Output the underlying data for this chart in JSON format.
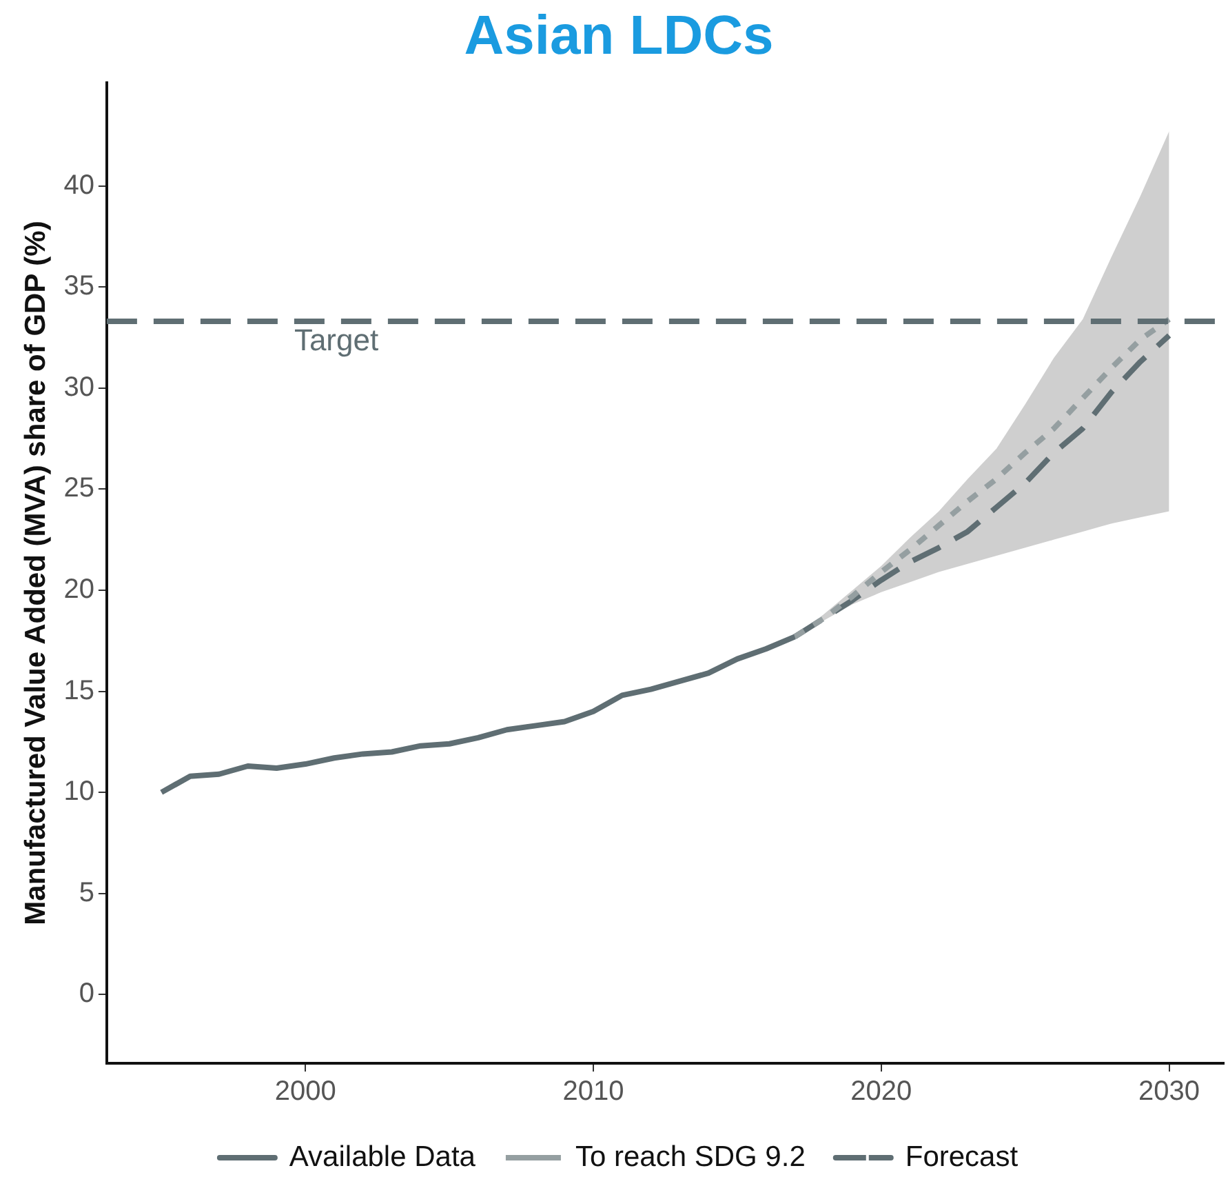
{
  "chart_data": {
    "type": "line",
    "title": "Asian LDCs",
    "ylabel": "Manufactured Value Added (MVA) share of GDP (%)",
    "xlim": [
      1993.1,
      2031.9
    ],
    "xticks": [
      2000,
      2010,
      2020,
      2030
    ],
    "ylim": [
      -3.4,
      45.1
    ],
    "yticks": [
      0,
      5,
      10,
      15,
      20,
      25,
      30,
      35,
      40
    ],
    "grid": false,
    "legend": "bottom",
    "marker": "none",
    "series": [
      {
        "name": "Available Data",
        "color": "#5f6e73",
        "line_style": "solid",
        "x": [
          1995,
          1996,
          1997,
          1998,
          1999,
          2000,
          2001,
          2002,
          2003,
          2004,
          2005,
          2006,
          2007,
          2008,
          2009,
          2010,
          2011,
          2012,
          2013,
          2014,
          2015,
          2016,
          2017
        ],
        "values": [
          10.0,
          10.8,
          10.9,
          11.3,
          11.2,
          11.4,
          11.7,
          11.9,
          12.0,
          12.3,
          12.4,
          12.7,
          13.1,
          13.3,
          13.5,
          14.0,
          14.8,
          15.1,
          15.5,
          15.9,
          16.6,
          17.1,
          17.7
        ]
      },
      {
        "name": "To reach SDG 9.2",
        "color": "#959fa1",
        "line_style": "dotted",
        "x": [
          2017,
          2018,
          2019,
          2020,
          2021,
          2022,
          2023,
          2024,
          2025,
          2026,
          2027,
          2028,
          2029,
          2030
        ],
        "values": [
          17.7,
          18.6,
          19.7,
          20.9,
          22.0,
          23.2,
          24.4,
          25.5,
          26.8,
          28.0,
          29.5,
          31.0,
          32.4,
          33.4
        ]
      },
      {
        "name": "Forecast",
        "color": "#5f6e73",
        "line_style": "dashed",
        "x": [
          2017,
          2018,
          2019,
          2020,
          2021,
          2022,
          2023,
          2024,
          2025,
          2026,
          2027,
          2028,
          2029,
          2030
        ],
        "values": [
          17.7,
          18.6,
          19.5,
          20.5,
          21.4,
          22.1,
          22.9,
          24.1,
          25.3,
          26.8,
          28.0,
          29.8,
          31.3,
          32.6
        ],
        "lower": [
          17.7,
          18.5,
          19.3,
          19.9,
          20.4,
          20.9,
          21.3,
          21.7,
          22.1,
          22.5,
          22.9,
          23.3,
          23.6,
          23.9
        ],
        "upper": [
          17.7,
          18.8,
          20.0,
          21.2,
          22.6,
          23.9,
          25.5,
          27.0,
          29.2,
          31.5,
          33.4,
          36.5,
          39.5,
          42.7
        ]
      }
    ],
    "ref_lines": [
      {
        "axis": "y",
        "value": 33.3,
        "label": "Target",
        "color": "#5f6e73",
        "line_style": "dashed"
      }
    ]
  }
}
